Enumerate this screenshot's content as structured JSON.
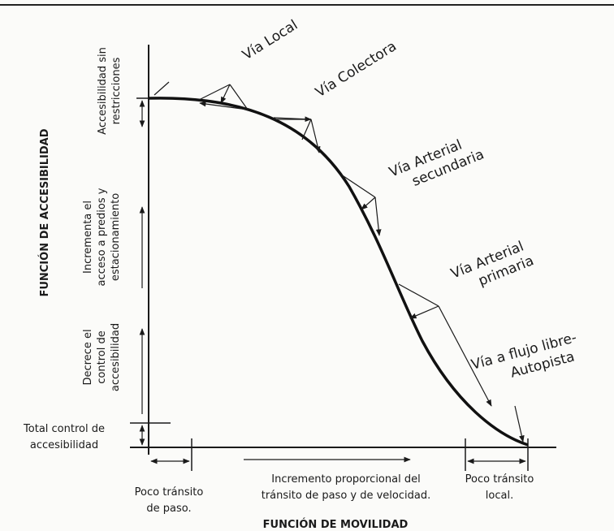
{
  "axes": {
    "y_title": "FUNCIÓN DE ACCESIBILIDAD",
    "x_title": "FUNCIÓN DE MOVILIDAD"
  },
  "road_types": {
    "local": "Vía Local",
    "colectora": "Vía Colectora",
    "arterial_secundaria": [
      "Vía Arterial",
      "secundaria"
    ],
    "arterial_primaria": [
      "Vía Arterial",
      "primaria"
    ],
    "flujo_libre": [
      "Vía a flujo libre-",
      "Autopista"
    ]
  },
  "y_annotations": {
    "sin_restricciones": [
      "Accesibilidad sin",
      "restricciones"
    ],
    "incrementa": [
      "Incrementa el",
      "acceso a predios y",
      "estacionamiento"
    ],
    "decrece": [
      "Decrece el",
      "control de",
      "accesibilidad"
    ],
    "total_control": [
      "Total control de",
      "accesibilidad"
    ]
  },
  "x_annotations": {
    "poco_paso": [
      "Poco tránsito",
      "de paso."
    ],
    "incremento": [
      "Incremento proporcional del",
      "tránsito de paso y de velocidad."
    ],
    "poco_local": [
      "Poco tránsito",
      "local."
    ]
  }
}
